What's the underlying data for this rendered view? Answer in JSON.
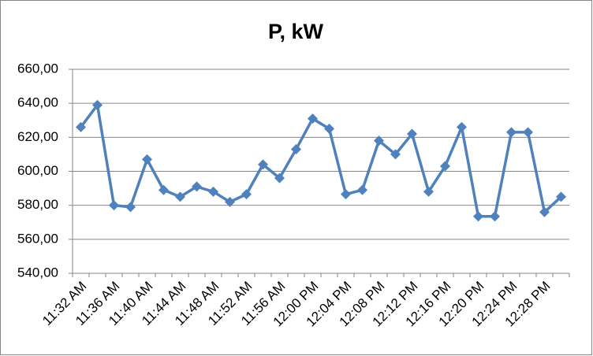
{
  "chart_data": {
    "type": "line",
    "title": "P, kW",
    "categories": [
      "11:32 AM",
      null,
      "11:36 AM",
      null,
      "11:40 AM",
      null,
      "11:44 AM",
      null,
      "11:48 AM",
      null,
      "11:52 AM",
      null,
      "11:56 AM",
      null,
      "12:00 PM",
      null,
      "12:04 PM",
      null,
      "12:08 PM",
      null,
      "12:12 PM",
      null,
      "12:16 PM",
      null,
      "12:20 PM",
      null,
      "12:24 PM",
      null,
      "12:28 PM",
      null
    ],
    "series": [
      {
        "name": "P, kW",
        "color": "#4f81bd",
        "values": [
          626,
          639,
          580,
          579,
          607,
          589,
          585,
          591,
          588,
          582,
          586.5,
          604,
          596,
          613,
          631,
          625,
          586.5,
          589,
          618,
          610,
          622,
          588,
          603,
          626,
          573.5,
          573.5,
          623,
          623,
          576,
          585
        ]
      }
    ],
    "ylim": [
      540,
      660
    ],
    "yticks": [
      {
        "value": 540,
        "label": "540,00"
      },
      {
        "value": 560,
        "label": "560,00"
      },
      {
        "value": 580,
        "label": "580,00"
      },
      {
        "value": 600,
        "label": "600,00"
      },
      {
        "value": 620,
        "label": "620,00"
      },
      {
        "value": 640,
        "label": "640,00"
      },
      {
        "value": 660,
        "label": "660,00"
      }
    ],
    "grid": true
  }
}
